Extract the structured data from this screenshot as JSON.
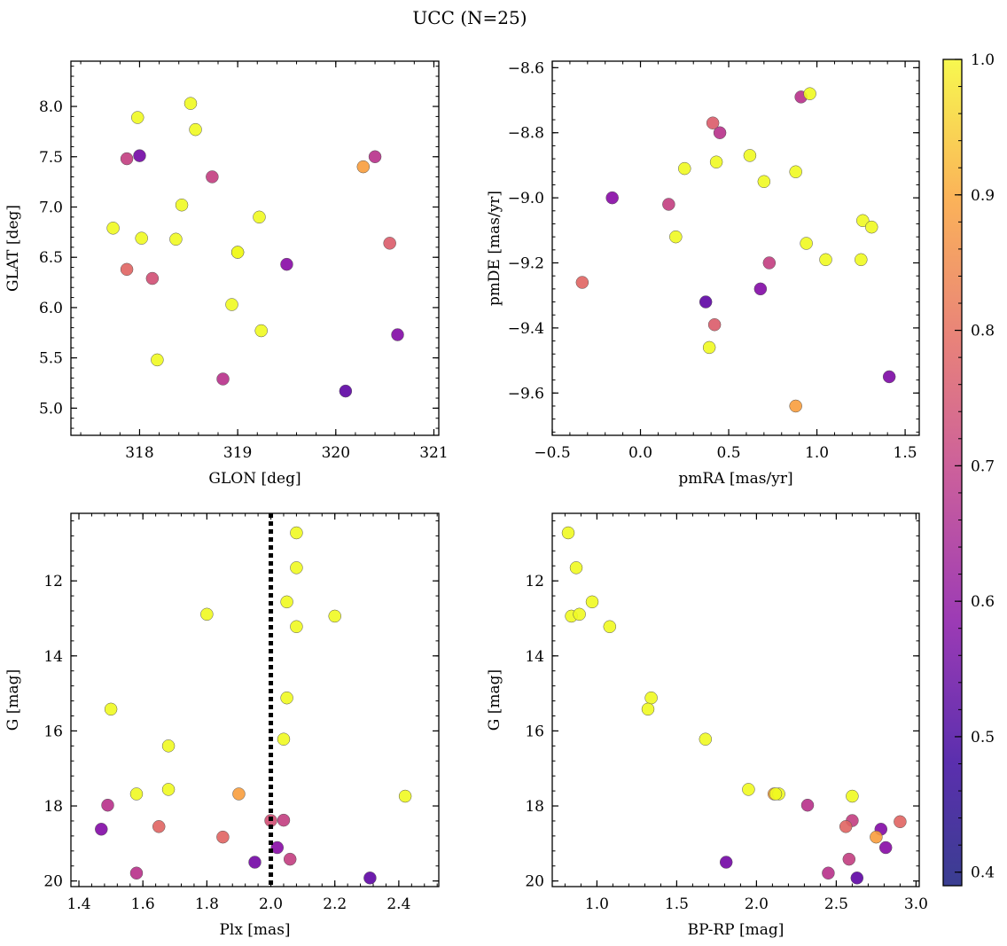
{
  "figure": {
    "title": "UCC (N=25)"
  },
  "colormap": {
    "name": "plasma",
    "ticks": [
      0.4,
      0.5,
      0.6,
      0.7,
      0.8,
      0.9,
      1.0
    ],
    "tick_labels": [
      "0.4",
      "0.5",
      "0.6",
      "0.7",
      "0.8",
      "0.9",
      "1.0"
    ],
    "range": [
      0.39,
      1.0
    ]
  },
  "colors": {
    "dotted_line": "#000000",
    "marker_edge": "#555555"
  },
  "chart_data": [
    {
      "id": "glon-glat",
      "type": "scatter",
      "title": "",
      "xlabel": "GLON [deg]",
      "ylabel": "GLAT [deg]",
      "xlim": [
        317.3,
        321.05
      ],
      "ylim": [
        4.73,
        8.45
      ],
      "y_inverted": false,
      "xticks": [
        318,
        319,
        320,
        321
      ],
      "xtick_labels": [
        "318",
        "319",
        "320",
        "321"
      ],
      "yticks": [
        5.0,
        5.5,
        6.0,
        6.5,
        7.0,
        7.5,
        8.0
      ],
      "ytick_labels": [
        "5.0",
        "5.5",
        "6.0",
        "6.5",
        "7.0",
        "7.5",
        "8.0"
      ],
      "x": [
        318.52,
        318.57,
        317.98,
        317.87,
        318.0,
        318.74,
        318.43,
        317.73,
        318.02,
        318.37,
        319.22,
        319.0,
        317.87,
        318.13,
        319.5,
        318.94,
        319.24,
        318.18,
        318.85,
        320.1,
        320.28,
        320.4,
        320.55,
        320.63,
        319.0
      ],
      "y": [
        8.03,
        7.77,
        7.89,
        7.48,
        7.51,
        7.3,
        7.02,
        6.79,
        6.69,
        6.68,
        6.9,
        6.55,
        6.38,
        6.29,
        6.43,
        6.03,
        5.77,
        5.48,
        5.29,
        5.17,
        7.4,
        7.5,
        6.64,
        5.73,
        6.55
      ],
      "color_values": [
        1.0,
        1.0,
        1.0,
        0.63,
        0.46,
        0.63,
        1.0,
        1.0,
        1.0,
        1.0,
        1.0,
        1.0,
        0.72,
        0.67,
        0.5,
        1.0,
        1.0,
        1.0,
        0.6,
        0.42,
        0.84,
        0.6,
        0.7,
        0.49,
        0.99
      ]
    },
    {
      "id": "pmra-pmde",
      "type": "scatter",
      "title": "",
      "xlabel": "pmRA [mas/yr]",
      "ylabel": "pmDE [mas/yr]",
      "xlim": [
        -0.5,
        1.58
      ],
      "ylim": [
        -9.73,
        -8.58
      ],
      "y_inverted": false,
      "xticks": [
        -0.5,
        0.0,
        0.5,
        1.0,
        1.5
      ],
      "xtick_labels": [
        "−0.5",
        "0.0",
        "0.5",
        "1.0",
        "1.5"
      ],
      "yticks": [
        -9.6,
        -9.4,
        -9.2,
        -9.0,
        -8.8,
        -8.6
      ],
      "ytick_labels": [
        "−9.6",
        "−9.4",
        "−9.2",
        "−9.0",
        "−8.8",
        "−8.6"
      ],
      "x": [
        0.96,
        0.91,
        0.41,
        0.45,
        0.62,
        0.43,
        0.25,
        0.88,
        0.7,
        -0.16,
        0.16,
        1.26,
        1.31,
        0.2,
        0.94,
        1.05,
        1.25,
        -0.33,
        0.73,
        0.68,
        0.37,
        0.42,
        0.39,
        1.41,
        0.88
      ],
      "y": [
        -8.68,
        -8.69,
        -8.77,
        -8.8,
        -8.87,
        -8.89,
        -8.91,
        -8.92,
        -8.95,
        -9.0,
        -9.02,
        -9.07,
        -9.09,
        -9.12,
        -9.14,
        -9.19,
        -9.19,
        -9.26,
        -9.2,
        -9.28,
        -9.32,
        -9.39,
        -9.46,
        -9.55,
        -9.64
      ],
      "color_values": [
        1.0,
        0.6,
        0.7,
        0.6,
        1.0,
        1.0,
        1.0,
        1.0,
        1.0,
        0.5,
        0.63,
        1.0,
        1.0,
        1.0,
        1.0,
        1.0,
        1.0,
        0.72,
        0.63,
        0.49,
        0.42,
        0.7,
        1.0,
        0.48,
        0.84
      ]
    },
    {
      "id": "plx-g",
      "type": "scatter",
      "title": "",
      "xlabel": "Plx [mas]",
      "ylabel": "G [mag]",
      "xlim": [
        1.375,
        2.525
      ],
      "ylim": [
        20.15,
        10.2
      ],
      "y_inverted": true,
      "xticks": [
        1.4,
        1.6,
        1.8,
        2.0,
        2.2,
        2.4
      ],
      "xtick_labels": [
        "1.4",
        "1.6",
        "1.8",
        "2.0",
        "2.2",
        "2.4"
      ],
      "yticks": [
        12,
        14,
        16,
        18,
        20
      ],
      "ytick_labels": [
        "12",
        "14",
        "16",
        "18",
        "20"
      ],
      "vline_x": 2.0,
      "x": [
        2.08,
        2.08,
        2.05,
        2.08,
        1.8,
        2.2,
        1.5,
        2.05,
        1.68,
        2.04,
        1.58,
        1.68,
        2.42,
        1.9,
        1.49,
        2.0,
        2.04,
        1.47,
        1.65,
        1.85,
        2.06,
        2.02,
        1.95,
        1.58,
        2.31
      ],
      "y": [
        10.72,
        11.65,
        12.56,
        13.22,
        12.89,
        12.94,
        15.42,
        15.12,
        16.4,
        16.22,
        17.68,
        17.56,
        17.74,
        17.68,
        17.98,
        18.39,
        18.38,
        18.62,
        18.55,
        18.83,
        19.42,
        19.11,
        19.5,
        19.79,
        19.92
      ],
      "color_values": [
        1.0,
        1.0,
        1.0,
        1.0,
        1.0,
        1.0,
        1.0,
        1.0,
        1.0,
        1.0,
        1.0,
        1.0,
        1.0,
        0.84,
        0.6,
        0.67,
        0.63,
        0.49,
        0.72,
        0.72,
        0.63,
        0.5,
        0.46,
        0.6,
        0.42
      ]
    },
    {
      "id": "bprp-g",
      "type": "scatter",
      "title": "",
      "xlabel": "BP-RP [mag]",
      "ylabel": "G [mag]",
      "xlim": [
        0.72,
        3.02
      ],
      "ylim": [
        20.15,
        10.2
      ],
      "y_inverted": true,
      "xticks": [
        1.0,
        1.5,
        2.0,
        2.5,
        3.0
      ],
      "xtick_labels": [
        "1.0",
        "1.5",
        "2.0",
        "2.5",
        "3.0"
      ],
      "yticks": [
        12,
        14,
        16,
        18,
        20
      ],
      "ytick_labels": [
        "12",
        "14",
        "16",
        "18",
        "20"
      ],
      "x": [
        0.82,
        0.87,
        0.84,
        0.89,
        0.97,
        1.08,
        1.34,
        1.32,
        1.68,
        1.95,
        2.11,
        2.14,
        2.6,
        2.32,
        2.6,
        2.56,
        2.78,
        2.75,
        2.9,
        2.81,
        2.58,
        1.81,
        2.45,
        2.63,
        2.12
      ],
      "y": [
        10.72,
        11.65,
        12.94,
        12.89,
        12.56,
        13.22,
        15.12,
        15.42,
        16.22,
        17.56,
        17.68,
        17.68,
        17.74,
        17.98,
        18.39,
        18.55,
        18.62,
        18.83,
        18.42,
        19.11,
        19.42,
        19.5,
        19.79,
        19.92,
        17.68
      ],
      "color_values": [
        1.0,
        1.0,
        1.0,
        1.0,
        1.0,
        1.0,
        1.0,
        1.0,
        1.0,
        1.0,
        0.84,
        1.0,
        1.0,
        0.6,
        0.63,
        0.72,
        0.49,
        0.84,
        0.72,
        0.5,
        0.63,
        0.46,
        0.6,
        0.42,
        1.0
      ]
    }
  ]
}
